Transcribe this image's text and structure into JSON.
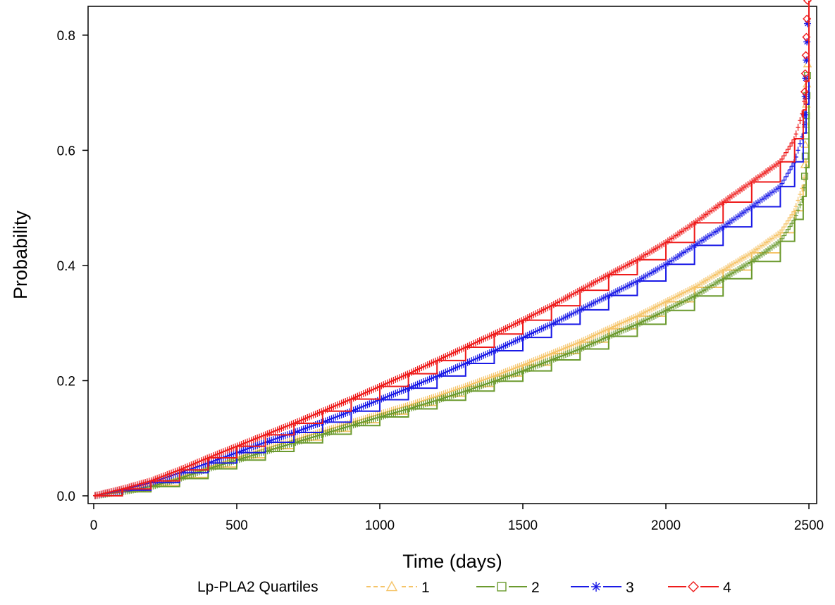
{
  "chart_data": {
    "type": "line",
    "title": "",
    "xlabel": "Time (days)",
    "ylabel": "Probability",
    "xlim": [
      0,
      2500
    ],
    "ylim": [
      0,
      0.85
    ],
    "xticks": [
      0,
      500,
      1000,
      1500,
      2000,
      2500
    ],
    "yticks": [
      0.0,
      0.2,
      0.4,
      0.6,
      0.8
    ],
    "xtick_labels": [
      "0",
      "500",
      "1000",
      "1500",
      "2000",
      "2500"
    ],
    "ytick_labels": [
      "0.0",
      "0.2",
      "0.4",
      "0.6",
      "0.8"
    ],
    "grid": false,
    "legend": {
      "title": "Lp-PLA2 Quartiles",
      "position": "bottom",
      "entries": [
        "1",
        "2",
        "3",
        "4"
      ]
    },
    "series": [
      {
        "name": "1",
        "color": "#f5c469",
        "line_style": "dashed",
        "marker": "triangle",
        "x": [
          0,
          100,
          200,
          300,
          400,
          500,
          600,
          700,
          800,
          900,
          1000,
          1100,
          1200,
          1300,
          1400,
          1500,
          1600,
          1700,
          1800,
          1900,
          2000,
          2100,
          2200,
          2300,
          2400,
          2450,
          2480,
          2490,
          2500
        ],
        "y": [
          0,
          0.008,
          0.018,
          0.032,
          0.05,
          0.066,
          0.082,
          0.097,
          0.112,
          0.127,
          0.142,
          0.157,
          0.173,
          0.19,
          0.208,
          0.227,
          0.247,
          0.267,
          0.29,
          0.312,
          0.337,
          0.362,
          0.392,
          0.422,
          0.457,
          0.495,
          0.54,
          0.58,
          0.75
        ]
      },
      {
        "name": "2",
        "color": "#6b9a2e",
        "line_style": "solid",
        "marker": "square",
        "x": [
          0,
          100,
          200,
          300,
          400,
          500,
          600,
          700,
          800,
          900,
          1000,
          1100,
          1200,
          1300,
          1400,
          1500,
          1600,
          1700,
          1800,
          1900,
          2000,
          2100,
          2200,
          2300,
          2400,
          2450,
          2480,
          2490,
          2500
        ],
        "y": [
          0,
          0.007,
          0.016,
          0.03,
          0.047,
          0.062,
          0.077,
          0.092,
          0.107,
          0.122,
          0.137,
          0.151,
          0.166,
          0.182,
          0.199,
          0.217,
          0.236,
          0.255,
          0.277,
          0.298,
          0.322,
          0.347,
          0.377,
          0.407,
          0.442,
          0.48,
          0.52,
          0.57,
          0.73
        ]
      },
      {
        "name": "3",
        "color": "#1a1ae6",
        "line_style": "solid",
        "marker": "asterisk",
        "x": [
          0,
          100,
          200,
          300,
          400,
          500,
          600,
          700,
          800,
          900,
          1000,
          1100,
          1200,
          1300,
          1400,
          1500,
          1600,
          1700,
          1800,
          1900,
          2000,
          2100,
          2200,
          2300,
          2400,
          2450,
          2480,
          2490,
          2500
        ],
        "y": [
          0,
          0.01,
          0.023,
          0.04,
          0.057,
          0.075,
          0.093,
          0.11,
          0.128,
          0.147,
          0.167,
          0.187,
          0.208,
          0.23,
          0.252,
          0.275,
          0.298,
          0.323,
          0.348,
          0.373,
          0.402,
          0.435,
          0.467,
          0.502,
          0.537,
          0.58,
          0.63,
          0.68,
          0.82
        ]
      },
      {
        "name": "4",
        "color": "#ee1b1b",
        "line_style": "solid",
        "marker": "diamond",
        "x": [
          0,
          100,
          200,
          300,
          400,
          500,
          600,
          700,
          800,
          900,
          1000,
          1100,
          1200,
          1300,
          1400,
          1500,
          1600,
          1700,
          1800,
          1900,
          2000,
          2100,
          2200,
          2300,
          2400,
          2450,
          2480,
          2490,
          2500
        ],
        "y": [
          0,
          0.012,
          0.026,
          0.045,
          0.066,
          0.086,
          0.106,
          0.126,
          0.147,
          0.168,
          0.19,
          0.212,
          0.235,
          0.258,
          0.281,
          0.305,
          0.33,
          0.357,
          0.384,
          0.41,
          0.44,
          0.474,
          0.51,
          0.545,
          0.58,
          0.62,
          0.67,
          0.72,
          0.86
        ]
      }
    ]
  }
}
